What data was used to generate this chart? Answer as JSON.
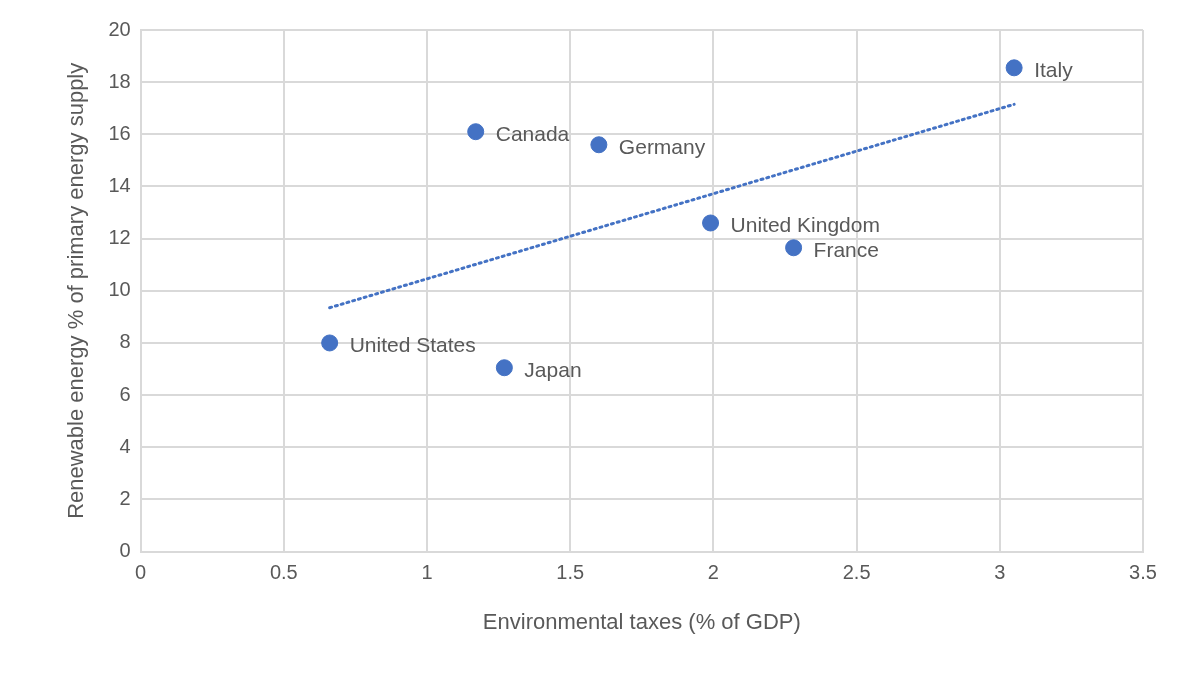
{
  "chart_data": {
    "type": "scatter",
    "xlabel": "Environmental taxes (% of GDP)",
    "ylabel": "Renewable energy % of primary energy supply",
    "xlim": [
      0,
      3.5
    ],
    "ylim": [
      0,
      20
    ],
    "xticks": [
      0,
      0.5,
      1,
      1.5,
      2,
      2.5,
      3,
      3.5
    ],
    "yticks": [
      0,
      2,
      4,
      6,
      8,
      10,
      12,
      14,
      16,
      18,
      20
    ],
    "grid": true,
    "legend": false,
    "marker": "circle",
    "series": [
      {
        "name": "Canada",
        "color": "#4472c4",
        "x": [
          1.17
        ],
        "values": [
          16.1
        ]
      },
      {
        "name": "Germany",
        "color": "#4472c4",
        "x": [
          1.6
        ],
        "values": [
          15.6
        ]
      },
      {
        "name": "Italy",
        "color": "#4472c4",
        "x": [
          3.05
        ],
        "values": [
          18.55
        ]
      },
      {
        "name": "United Kingdom",
        "color": "#4472c4",
        "x": [
          1.99
        ],
        "values": [
          12.6
        ]
      },
      {
        "name": "France",
        "color": "#4472c4",
        "x": [
          2.28
        ],
        "values": [
          11.65
        ]
      },
      {
        "name": "United States",
        "color": "#4472c4",
        "x": [
          0.66
        ],
        "values": [
          8
        ]
      },
      {
        "name": "Japan",
        "color": "#4472c4",
        "x": [
          1.27
        ],
        "values": [
          7.05
        ]
      },
      {
        "type": "line",
        "color": "#4472c4",
        "line_style": "dotted",
        "marker": "none",
        "x": [
          0.66,
          3.05
        ],
        "values": [
          9.35,
          17.15
        ]
      }
    ]
  }
}
